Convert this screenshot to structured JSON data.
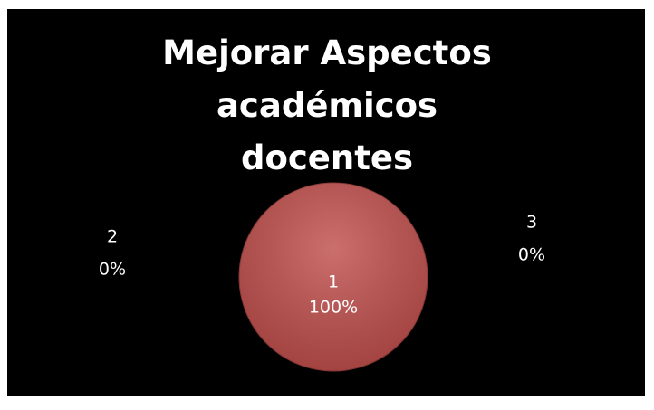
{
  "chart_data": {
    "type": "pie",
    "title": "Mejorar Aspectos académicos docentes",
    "categories": [
      "1",
      "2",
      "3"
    ],
    "values": [
      100,
      0,
      0
    ],
    "value_labels": [
      "100%",
      "0%",
      "0%"
    ],
    "color": "#c0504d"
  }
}
